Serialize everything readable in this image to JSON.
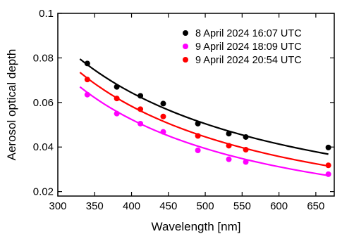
{
  "chart_data": {
    "type": "scatter",
    "title": "",
    "xlabel": "Wavelength [nm]",
    "ylabel": "Aerosol optical depth",
    "xlim": [
      300,
      675
    ],
    "ylim": [
      0.018,
      0.1
    ],
    "xticks": [
      "300",
      "350",
      "400",
      "450",
      "500",
      "550",
      "600",
      "650"
    ],
    "xtick_values": [
      300,
      350,
      400,
      450,
      500,
      550,
      600,
      650
    ],
    "yticks": [
      "0.02",
      "0.04",
      "0.06",
      "0.08",
      "0.1"
    ],
    "ytick_values": [
      0.02,
      0.04,
      0.06,
      0.08,
      0.1
    ],
    "legend_position": "top-right",
    "grid": false,
    "x": [
      340,
      380,
      412,
      443,
      490,
      532,
      555,
      667
    ],
    "series": [
      {
        "name": "8 April 2024 16:07 UTC",
        "color": "#000000",
        "values": [
          0.0775,
          0.067,
          0.063,
          0.0595,
          0.0505,
          0.046,
          0.0445,
          0.0398
        ],
        "fit_x": [
          330,
          667
        ],
        "fit": [
          0.0795,
          0.0368
        ]
      },
      {
        "name": "9 April 2024 18:09 UTC",
        "color": "#ff00ff",
        "values": [
          0.0635,
          0.055,
          0.0505,
          0.0468,
          0.0385,
          0.0345,
          0.0333,
          0.0278
        ],
        "fit_x": [
          330,
          667
        ],
        "fit": [
          0.067,
          0.0272
        ]
      },
      {
        "name": "9 April 2024 20:54 UTC",
        "color": "#ff0000",
        "values": [
          0.0703,
          0.0618,
          0.057,
          0.0537,
          0.045,
          0.0406,
          0.0388,
          0.0318
        ],
        "fit_x": [
          330,
          667
        ],
        "fit": [
          0.0735,
          0.0315
        ]
      }
    ]
  }
}
